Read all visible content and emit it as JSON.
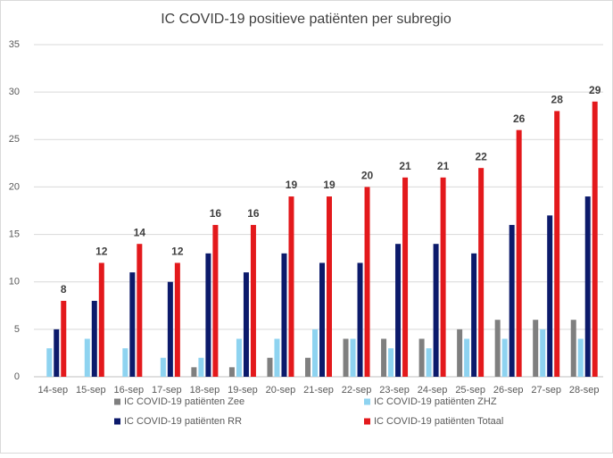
{
  "chart_data": {
    "type": "bar",
    "title": "IC COVID-19 positieve patiënten per subregio",
    "categories": [
      "14-sep",
      "15-sep",
      "16-sep",
      "17-sep",
      "18-sep",
      "19-sep",
      "20-sep",
      "21-sep",
      "22-sep",
      "23-sep",
      "24-sep",
      "25-sep",
      "26-sep",
      "27-sep",
      "28-sep"
    ],
    "series": [
      {
        "name": "IC COVID-19 patiënten Zee",
        "color": "#7f7f7f",
        "values": [
          0,
          0,
          0,
          0,
          1,
          1,
          2,
          2,
          4,
          4,
          4,
          5,
          6,
          6,
          6
        ]
      },
      {
        "name": "IC COVID-19 patiënten ZHZ",
        "color": "#8ed3f0",
        "values": [
          3,
          4,
          3,
          2,
          2,
          4,
          4,
          5,
          4,
          3,
          3,
          4,
          4,
          5,
          4
        ]
      },
      {
        "name": "IC COVID-19 patiënten RR",
        "color": "#0c1a6b",
        "values": [
          5,
          8,
          11,
          10,
          13,
          11,
          13,
          12,
          12,
          14,
          14,
          13,
          16,
          17,
          19
        ]
      },
      {
        "name": "IC COVID-19 patiënten Totaal",
        "color": "#e3191c",
        "values": [
          8,
          12,
          14,
          12,
          16,
          16,
          19,
          19,
          20,
          21,
          21,
          22,
          26,
          28,
          29
        ],
        "data_labels": true
      }
    ],
    "ylim": [
      0,
      35
    ],
    "yticks": [
      0,
      5,
      10,
      15,
      20,
      25,
      30,
      35
    ],
    "grid": true,
    "legend": "bottom"
  }
}
